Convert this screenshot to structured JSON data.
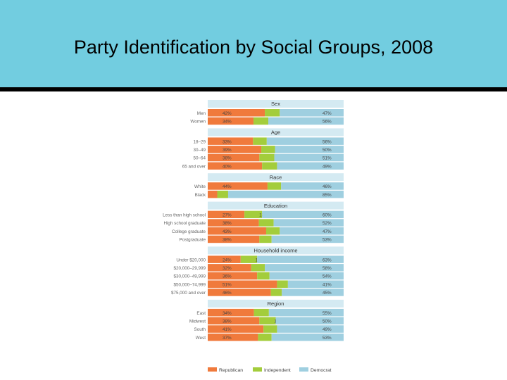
{
  "slide": {
    "title": "Party Identification by Social Groups, 2008"
  },
  "colors": {
    "header_bg": "#72cde0",
    "republican": "#f07a3c",
    "independent": "#a3cd3c",
    "democrat": "#9fcfe0",
    "section_band": "#d4eaf2"
  },
  "chart_data": {
    "type": "bar",
    "stacked": true,
    "orientation": "horizontal",
    "legend_position": "bottom",
    "legend": [
      "Republican",
      "Independent",
      "Democrat"
    ],
    "xlim": [
      0,
      100
    ],
    "groups": [
      {
        "name": "Sex",
        "rows": [
          {
            "label": "Men",
            "values": [
              42,
              11,
              47
            ]
          },
          {
            "label": "Women",
            "values": [
              34,
              11,
              56
            ]
          }
        ]
      },
      {
        "name": "Age",
        "rows": [
          {
            "label": "18–29",
            "values": [
              33,
              10,
              56
            ]
          },
          {
            "label": "30–49",
            "values": [
              39,
              10,
              50
            ]
          },
          {
            "label": "50–64",
            "values": [
              38,
              11,
              51
            ]
          },
          {
            "label": "65 and over",
            "values": [
              40,
              11,
              49
            ]
          }
        ]
      },
      {
        "name": "Race",
        "rows": [
          {
            "label": "White",
            "values": [
              44,
              10,
              46
            ]
          },
          {
            "label": "Black",
            "values": [
              7,
              8,
              85
            ]
          }
        ]
      },
      {
        "name": "Education",
        "rows": [
          {
            "label": "Less than high school",
            "values": [
              27,
              13,
              60
            ]
          },
          {
            "label": "High school graduate",
            "values": [
              38,
              11,
              52
            ]
          },
          {
            "label": "College graduate",
            "values": [
              43,
              10,
              47
            ]
          },
          {
            "label": "Postgraduate",
            "values": [
              38,
              9,
              53
            ]
          }
        ]
      },
      {
        "name": "Household income",
        "rows": [
          {
            "label": "Under $20,000",
            "values": [
              24,
              12,
              63
            ]
          },
          {
            "label": "$20,000–29,999",
            "values": [
              32,
              10,
              58
            ]
          },
          {
            "label": "$30,000–49,999",
            "values": [
              36,
              9,
              54
            ]
          },
          {
            "label": "$50,000–74,999",
            "values": [
              51,
              8,
              41
            ]
          },
          {
            "label": "$75,000 and over",
            "values": [
              46,
              8,
              45
            ]
          }
        ]
      },
      {
        "name": "Region",
        "rows": [
          {
            "label": "East",
            "values": [
              34,
              11,
              55
            ]
          },
          {
            "label": "Midwest",
            "values": [
              38,
              12,
              50
            ]
          },
          {
            "label": "South",
            "values": [
              41,
              10,
              49
            ]
          },
          {
            "label": "West",
            "values": [
              37,
              10,
              53
            ]
          }
        ]
      }
    ]
  }
}
